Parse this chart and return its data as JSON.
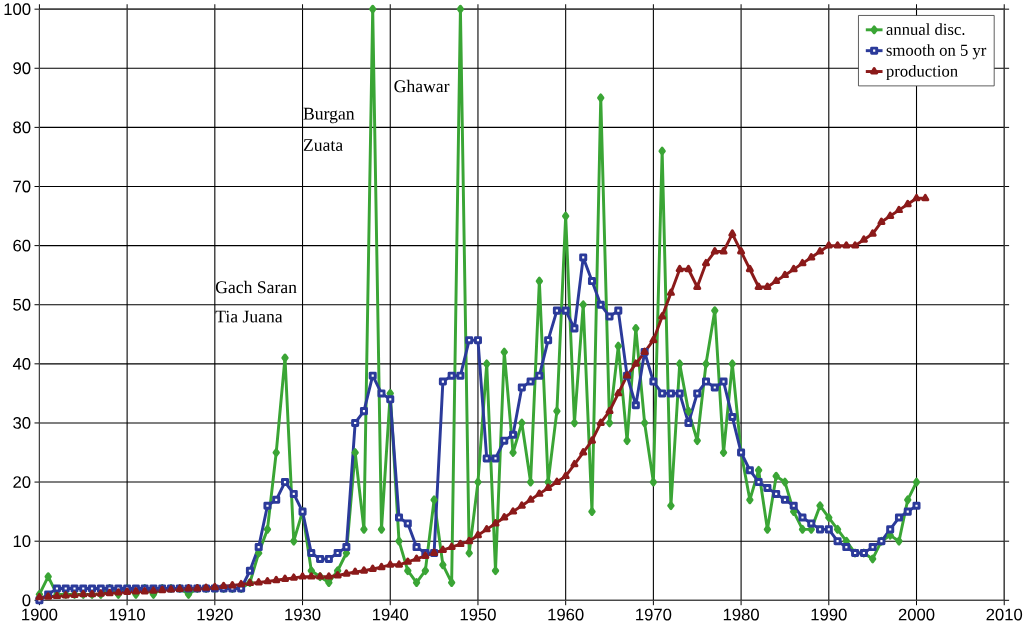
{
  "chart_data": {
    "type": "line",
    "xlim": [
      1900,
      2010
    ],
    "ylim": [
      0,
      100
    ],
    "xticks": [
      1900,
      1910,
      1920,
      1930,
      1940,
      1950,
      1960,
      1970,
      1980,
      1990,
      2000,
      2010
    ],
    "yticks": [
      0,
      10,
      20,
      30,
      40,
      50,
      60,
      70,
      80,
      90,
      100
    ],
    "grid": true,
    "legend": "top right",
    "line_style": "solid",
    "x": [
      1900,
      1901,
      1902,
      1903,
      1904,
      1905,
      1906,
      1907,
      1908,
      1909,
      1910,
      1911,
      1912,
      1913,
      1914,
      1915,
      1916,
      1917,
      1918,
      1919,
      1920,
      1921,
      1922,
      1923,
      1924,
      1925,
      1926,
      1927,
      1928,
      1929,
      1930,
      1931,
      1932,
      1933,
      1934,
      1935,
      1936,
      1937,
      1938,
      1939,
      1940,
      1941,
      1942,
      1943,
      1944,
      1945,
      1946,
      1947,
      1948,
      1949,
      1950,
      1951,
      1952,
      1953,
      1954,
      1955,
      1956,
      1957,
      1958,
      1959,
      1960,
      1961,
      1962,
      1963,
      1964,
      1965,
      1966,
      1967,
      1968,
      1969,
      1970,
      1971,
      1972,
      1973,
      1974,
      1975,
      1976,
      1977,
      1978,
      1979,
      1980,
      1981,
      1982,
      1983,
      1984,
      1985,
      1986,
      1987,
      1988,
      1989,
      1990,
      1991,
      1992,
      1993,
      1994,
      1995,
      1996,
      1997,
      1998,
      1999,
      2000
    ],
    "series": [
      {
        "name": "annual disc.",
        "color": "#3aa535",
        "marker": "diamond",
        "values": [
          1,
          4,
          1,
          1,
          1,
          1,
          1,
          1,
          2,
          1,
          2,
          1,
          2,
          1,
          2,
          2,
          2,
          1,
          2,
          2,
          2,
          2,
          2,
          2,
          3,
          8,
          12,
          25,
          41,
          10,
          15,
          5,
          4,
          3,
          5,
          8,
          25,
          12,
          100,
          12,
          35,
          10,
          5,
          3,
          5,
          17,
          6,
          3,
          100,
          8,
          20,
          40,
          5,
          42,
          25,
          30,
          20,
          54,
          20,
          32,
          65,
          30,
          50,
          15,
          85,
          30,
          43,
          27,
          46,
          30,
          20,
          76,
          16,
          40,
          32,
          27,
          40,
          49,
          25,
          40,
          25,
          17,
          22,
          12,
          21,
          20,
          15,
          12,
          12,
          16,
          14,
          12,
          10,
          8,
          8,
          7,
          10,
          11,
          10,
          17,
          20
        ]
      },
      {
        "name": "smooth on 5 yr",
        "color": "#2b3a9a",
        "marker": "square",
        "values": [
          0,
          1,
          2,
          2,
          2,
          2,
          2,
          2,
          2,
          2,
          2,
          2,
          2,
          2,
          2,
          2,
          2,
          2,
          2,
          2,
          2,
          2,
          2,
          2,
          5,
          9,
          16,
          17,
          20,
          18,
          15,
          8,
          7,
          7,
          8,
          9,
          30,
          32,
          38,
          35,
          34,
          14,
          13,
          9,
          8,
          8,
          37,
          38,
          38,
          44,
          44,
          24,
          24,
          27,
          28,
          36,
          37,
          38,
          44,
          49,
          49,
          46,
          58,
          54,
          50,
          48,
          49,
          38,
          33,
          42,
          37,
          35,
          35,
          35,
          30,
          35,
          37,
          36,
          37,
          31,
          25,
          22,
          20,
          19,
          18,
          17,
          16,
          14,
          13,
          12,
          12,
          10,
          9,
          8,
          8,
          9,
          10,
          12,
          14,
          15,
          16
        ]
      },
      {
        "name": "production",
        "color": "#8b1a1a",
        "marker": "triangle",
        "x": [
          1900,
          1901,
          1902,
          1903,
          1904,
          1905,
          1906,
          1907,
          1908,
          1909,
          1910,
          1911,
          1912,
          1913,
          1914,
          1915,
          1916,
          1917,
          1918,
          1919,
          1920,
          1921,
          1922,
          1923,
          1924,
          1925,
          1926,
          1927,
          1928,
          1929,
          1930,
          1931,
          1932,
          1933,
          1934,
          1935,
          1936,
          1937,
          1938,
          1939,
          1940,
          1941,
          1942,
          1943,
          1944,
          1945,
          1946,
          1947,
          1948,
          1949,
          1950,
          1951,
          1952,
          1953,
          1954,
          1955,
          1956,
          1957,
          1958,
          1959,
          1960,
          1961,
          1962,
          1963,
          1964,
          1965,
          1966,
          1967,
          1968,
          1969,
          1970,
          1971,
          1972,
          1973,
          1974,
          1975,
          1976,
          1977,
          1978,
          1979,
          1980,
          1981,
          1982,
          1983,
          1984,
          1985,
          1986,
          1987,
          1988,
          1989,
          1990,
          1991,
          1992,
          1993,
          1994,
          1995,
          1996,
          1997,
          1998,
          1999,
          2000,
          2001
        ],
        "values": [
          0.5,
          0.6,
          0.7,
          0.8,
          0.9,
          1,
          1,
          1.1,
          1.2,
          1.3,
          1.4,
          1.5,
          1.5,
          1.6,
          1.7,
          1.8,
          1.9,
          2,
          2,
          2.1,
          2.2,
          2.4,
          2.5,
          2.7,
          2.9,
          3,
          3.2,
          3.4,
          3.6,
          3.8,
          4,
          4,
          4,
          4,
          4.2,
          4.5,
          4.8,
          5,
          5.3,
          5.6,
          6,
          6,
          6.5,
          7,
          7.5,
          8,
          8.5,
          9,
          9.5,
          10,
          11,
          12,
          13,
          14,
          15,
          16,
          17,
          18,
          19,
          20,
          21,
          23,
          25,
          27,
          30,
          32,
          35,
          38,
          40,
          42,
          44,
          48,
          52,
          56,
          56,
          53,
          57,
          59,
          59,
          62,
          59,
          56,
          53,
          53,
          54,
          55,
          56,
          57,
          58,
          59,
          60,
          60,
          60,
          60,
          61,
          62,
          64,
          65,
          66,
          67,
          68,
          68
        ]
      }
    ],
    "annotations": [
      "Gach Saran",
      "Tia Juana",
      "Burgan",
      "Zuata",
      "Ghawar"
    ]
  }
}
